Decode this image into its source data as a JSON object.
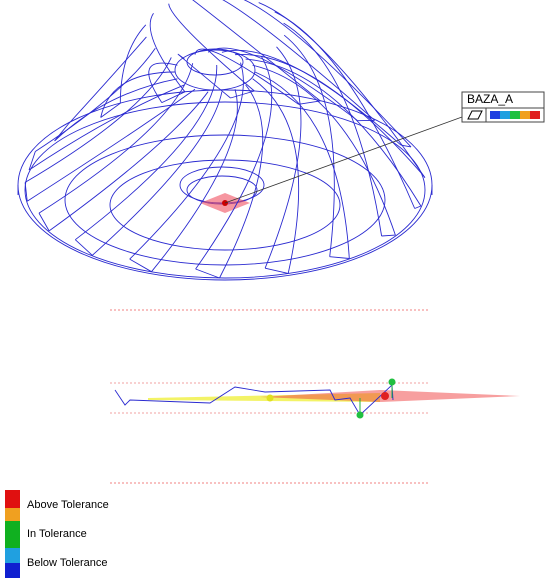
{
  "callout": {
    "label": "BAZA_A"
  },
  "legend": {
    "items": [
      "Above Tolerance",
      "In Tolerance",
      "Below Tolerance"
    ]
  }
}
